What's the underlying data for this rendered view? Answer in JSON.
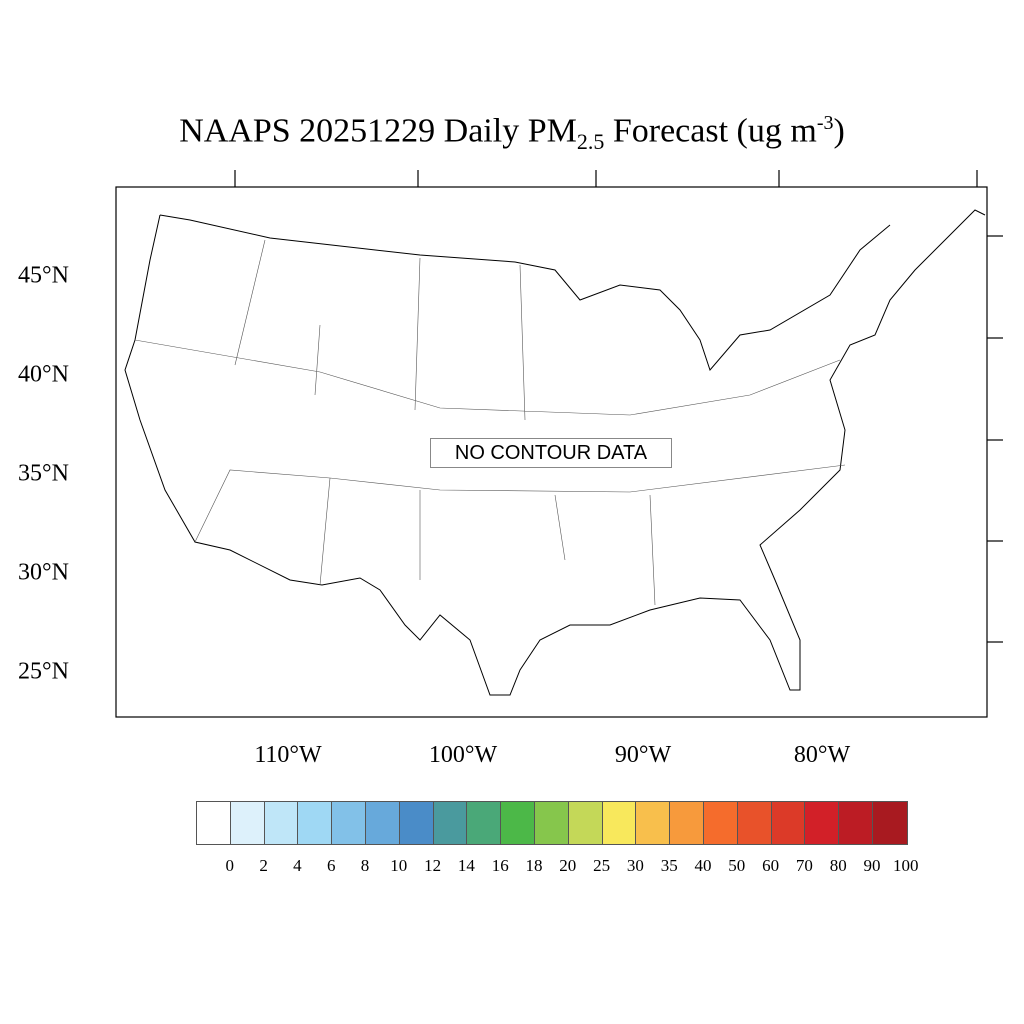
{
  "title": {
    "main": "NAAPS 20251229 Daily PM",
    "subscript": "2.5",
    "rest": " Forecast (ug m",
    "superscript": "-3",
    "close": ")"
  },
  "message": "NO CONTOUR DATA",
  "lat_labels": [
    "45°N",
    "40°N",
    "35°N",
    "30°N",
    "25°N"
  ],
  "lon_labels": [
    "110°W",
    "100°W",
    "90°W",
    "80°W"
  ],
  "colorbar": {
    "labels": [
      "0",
      "2",
      "4",
      "6",
      "8",
      "10",
      "12",
      "14",
      "16",
      "18",
      "20",
      "25",
      "30",
      "35",
      "40",
      "50",
      "60",
      "70",
      "80",
      "90",
      "100"
    ],
    "colors": [
      "#ffffff",
      "#ddf1fb",
      "#bfe6f8",
      "#9fd8f4",
      "#82c1e8",
      "#67a9db",
      "#4a8cc8",
      "#4a9a9e",
      "#4aa878",
      "#4cb848",
      "#86c64c",
      "#c4d858",
      "#f8e85c",
      "#f8bf4c",
      "#f79a3c",
      "#f56c2c",
      "#e8522a",
      "#dc3a28",
      "#d22028",
      "#bc1c24",
      "#a81a20",
      "#901618"
    ]
  }
}
